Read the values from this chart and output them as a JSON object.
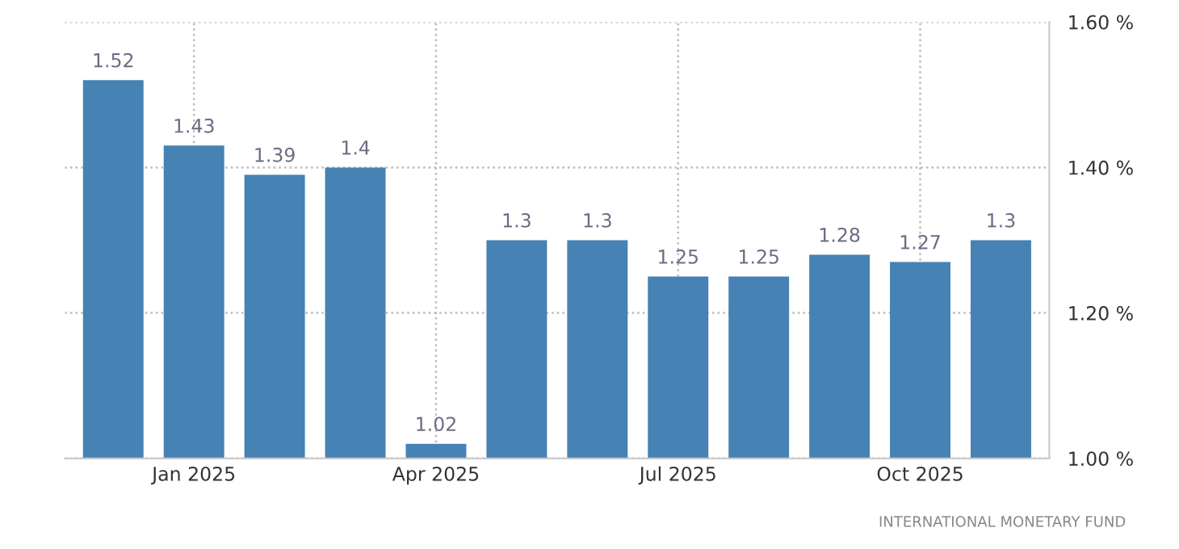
{
  "chart_data": {
    "type": "bar",
    "categories": [
      null,
      "Jan 2025",
      null,
      null,
      "Apr 2025",
      null,
      null,
      "Jul 2025",
      null,
      null,
      "Oct 2025",
      null
    ],
    "values": [
      1.52,
      1.43,
      1.39,
      1.4,
      1.02,
      1.3,
      1.3,
      1.25,
      1.25,
      1.28,
      1.27,
      1.3
    ],
    "color": "#4682b4",
    "ylim": [
      1.0,
      1.6
    ],
    "yticks": [
      {
        "value": 1.0,
        "label": "1.00 %"
      },
      {
        "value": 1.2,
        "label": "1.20 %"
      },
      {
        "value": 1.4,
        "label": "1.40 %"
      },
      {
        "value": 1.6,
        "label": "1.60 %"
      }
    ],
    "grid": true,
    "data_labels": true,
    "annotations": [
      "INTERNATIONAL MONETARY FUND"
    ]
  }
}
